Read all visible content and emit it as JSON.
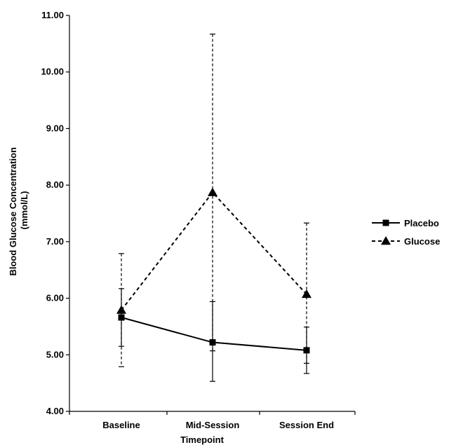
{
  "chart_data": {
    "type": "line",
    "categories": [
      "Baseline",
      "Mid-Session",
      "Session End"
    ],
    "xlabel": "Timepoint",
    "ylabel_lines": [
      "Blood Glucose Concentration",
      "(mmol/L)"
    ],
    "ylim": [
      4.0,
      11.0
    ],
    "yticks": [
      "4.00",
      "5.00",
      "6.00",
      "7.00",
      "8.00",
      "9.00",
      "10.00",
      "11.00"
    ],
    "grid": false,
    "legend_position": "right",
    "series": [
      {
        "name": "Placebo",
        "marker": "square",
        "line_style": "solid",
        "color": "#000000",
        "values": [
          5.66,
          5.22,
          5.08
        ],
        "error_upper": [
          6.17,
          5.94,
          5.49
        ],
        "error_lower": [
          5.15,
          4.53,
          4.67
        ]
      },
      {
        "name": "Glucose",
        "marker": "triangle",
        "line_style": "dashed",
        "color": "#000000",
        "values": [
          5.79,
          7.87,
          6.07
        ],
        "error_upper": [
          6.79,
          10.67,
          7.33
        ],
        "error_lower": [
          4.79,
          5.07,
          4.85
        ]
      }
    ]
  }
}
